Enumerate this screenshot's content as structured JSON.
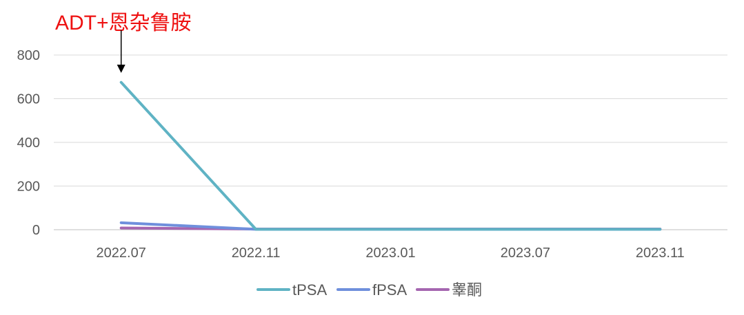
{
  "chart_data": {
    "type": "line",
    "categories": [
      "2022.07",
      "2022.11",
      "2023.01",
      "2023.07",
      "2023.11"
    ],
    "ylim": [
      0,
      800
    ],
    "yticks": [
      0,
      200,
      400,
      600,
      800
    ],
    "grid": true,
    "legend_position": "bottom",
    "series": [
      {
        "name": "tPSA",
        "color": "#5fb3c4",
        "values": [
          675,
          2,
          2,
          2,
          2
        ]
      },
      {
        "name": "fPSA",
        "color": "#6f8fdc",
        "values": [
          32,
          2,
          2,
          2,
          2
        ]
      },
      {
        "name": "睾酮",
        "color": "#a566b0",
        "values": [
          8,
          3,
          3,
          3,
          3
        ]
      }
    ],
    "annotation": {
      "text": "ADT+恩杂鲁胺",
      "category": "2022.07"
    }
  }
}
